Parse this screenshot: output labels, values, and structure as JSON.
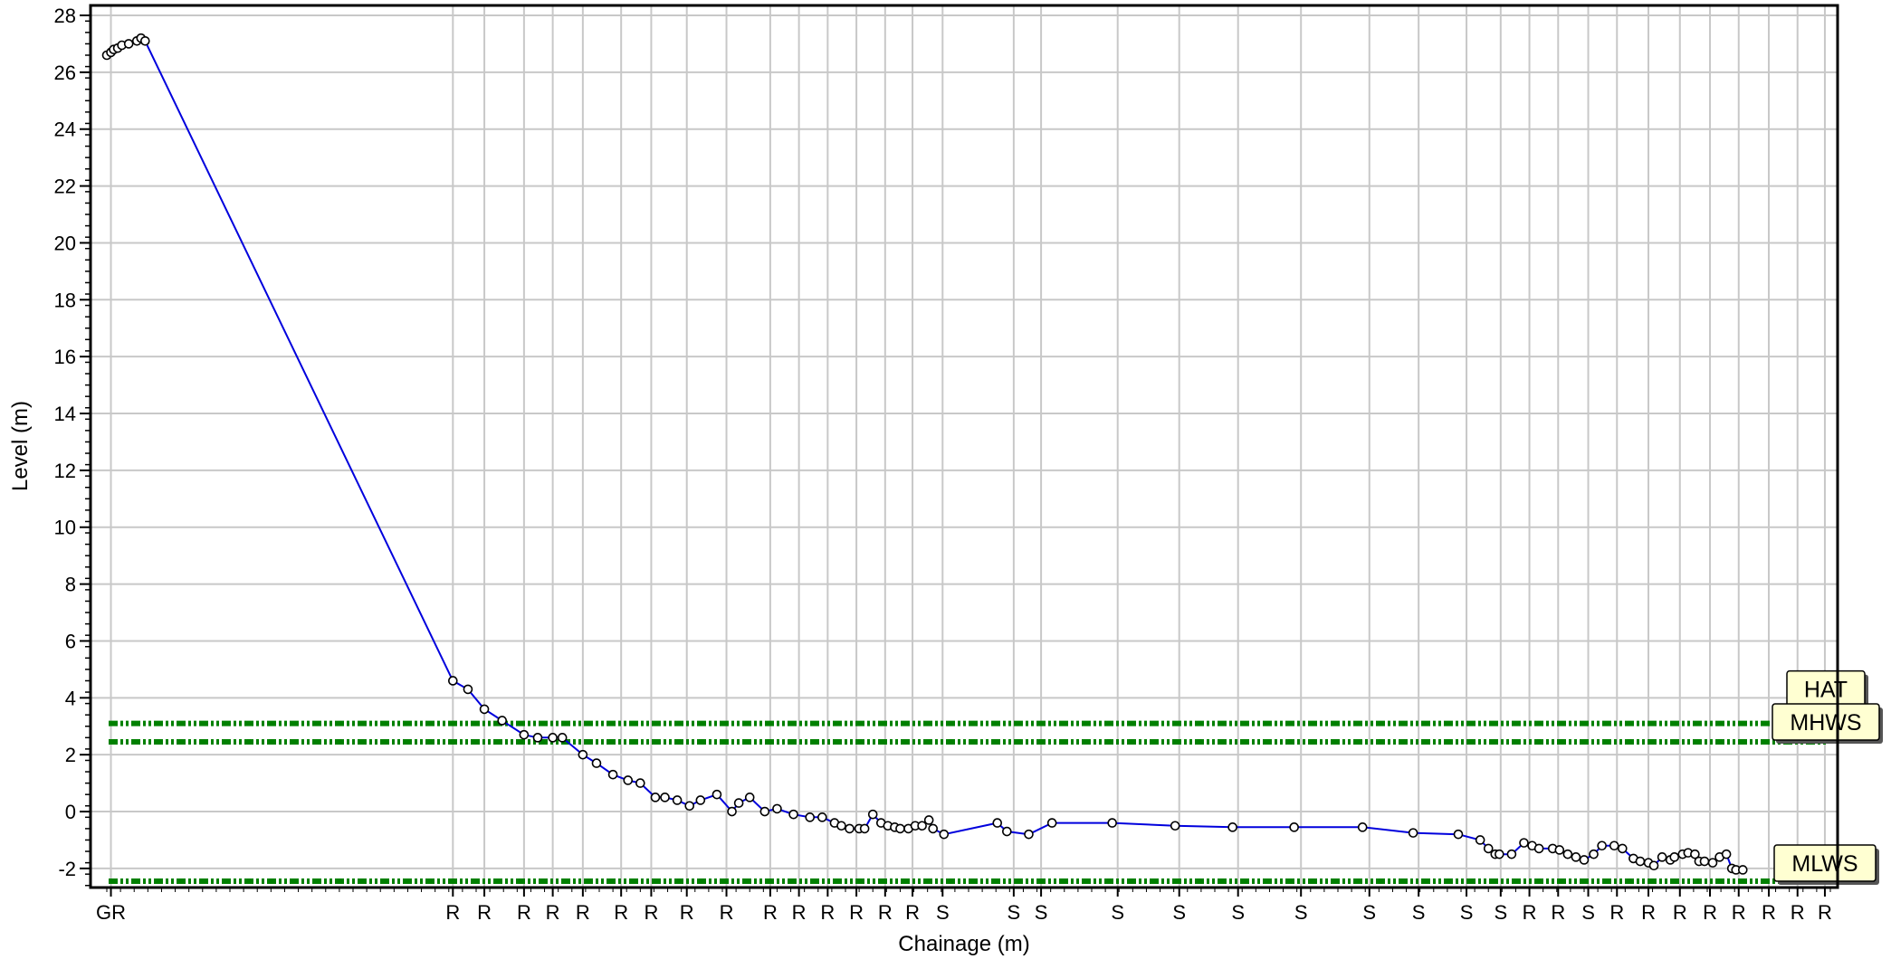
{
  "chart_data": {
    "type": "line",
    "xlabel": "Chainage (m)",
    "ylabel": "Level (m)",
    "ylim": [
      -3,
      28
    ],
    "yticks": [
      -2,
      0,
      2,
      4,
      6,
      8,
      10,
      12,
      14,
      16,
      18,
      20,
      22,
      24,
      26,
      28
    ],
    "xlim": [
      0,
      126
    ],
    "grid": true,
    "x_tick_labels": [
      {
        "x": 0.3,
        "text": "GR"
      },
      {
        "x": 25.3,
        "text": "R"
      },
      {
        "x": 27.6,
        "text": "R"
      },
      {
        "x": 30.5,
        "text": "R"
      },
      {
        "x": 32.6,
        "text": "R"
      },
      {
        "x": 34.8,
        "text": "R"
      },
      {
        "x": 37.6,
        "text": "R"
      },
      {
        "x": 39.8,
        "text": "R"
      },
      {
        "x": 42.4,
        "text": "R"
      },
      {
        "x": 45.3,
        "text": "R"
      },
      {
        "x": 48.5,
        "text": "R"
      },
      {
        "x": 50.6,
        "text": "R"
      },
      {
        "x": 52.7,
        "text": "R"
      },
      {
        "x": 54.8,
        "text": "R"
      },
      {
        "x": 56.9,
        "text": "R"
      },
      {
        "x": 58.9,
        "text": "R"
      },
      {
        "x": 61.1,
        "text": "S"
      },
      {
        "x": 66.3,
        "text": "S"
      },
      {
        "x": 68.3,
        "text": "S"
      },
      {
        "x": 73.9,
        "text": "S"
      },
      {
        "x": 78.4,
        "text": "S"
      },
      {
        "x": 82.7,
        "text": "S"
      },
      {
        "x": 87.3,
        "text": "S"
      },
      {
        "x": 92.3,
        "text": "S"
      },
      {
        "x": 95.9,
        "text": "S"
      },
      {
        "x": 99.4,
        "text": "S"
      },
      {
        "x": 101.9,
        "text": "S"
      },
      {
        "x": 104.0,
        "text": "R"
      },
      {
        "x": 106.1,
        "text": "R"
      },
      {
        "x": 108.3,
        "text": "S"
      },
      {
        "x": 110.4,
        "text": "R"
      },
      {
        "x": 112.7,
        "text": "R"
      },
      {
        "x": 115.0,
        "text": "R"
      },
      {
        "x": 117.2,
        "text": "R"
      },
      {
        "x": 119.3,
        "text": "R"
      },
      {
        "x": 121.5,
        "text": "R"
      },
      {
        "x": 123.6,
        "text": "R"
      },
      {
        "x": 125.6,
        "text": "R"
      }
    ],
    "series": [
      {
        "color": "#0000dd",
        "marker": "circle",
        "x": [
          0.0,
          0.3,
          0.5,
          0.8,
          1.1,
          1.6,
          2.2,
          2.5,
          2.8,
          25.3,
          26.4,
          27.6,
          28.9,
          30.5,
          31.5,
          32.6,
          33.3,
          34.8,
          35.8,
          37.0,
          38.1,
          39.0,
          40.1,
          40.8,
          41.7,
          42.6,
          43.4,
          44.6,
          45.7,
          46.2,
          47.0,
          48.1,
          49.0,
          50.2,
          51.4,
          52.3,
          53.2,
          53.7,
          54.3,
          55.0,
          55.4,
          56.0,
          56.6,
          57.1,
          57.6,
          58.0,
          58.6,
          59.1,
          59.6,
          60.1,
          60.4,
          61.2,
          65.1,
          65.8,
          67.4,
          69.1,
          73.5,
          78.1,
          82.3,
          86.8,
          91.8,
          95.5,
          98.8,
          100.4,
          101.0,
          101.5,
          101.8,
          102.7,
          103.6,
          104.2,
          104.7,
          105.7,
          106.2,
          106.8,
          107.4,
          108.0,
          108.7,
          109.3,
          110.2,
          110.8,
          111.6,
          112.1,
          112.7,
          113.1,
          113.7,
          114.3,
          114.6,
          115.2,
          115.6,
          116.1,
          116.4,
          116.8,
          117.4,
          117.9,
          118.4,
          118.8,
          119.1,
          119.6
        ],
        "y": [
          26.6,
          26.7,
          26.8,
          26.85,
          26.95,
          27.0,
          27.1,
          27.2,
          27.1,
          4.6,
          4.3,
          3.6,
          3.2,
          2.7,
          2.6,
          2.6,
          2.6,
          2.0,
          1.7,
          1.3,
          1.1,
          1.0,
          0.5,
          0.5,
          0.4,
          0.2,
          0.4,
          0.6,
          0.0,
          0.3,
          0.5,
          0.0,
          0.1,
          -0.1,
          -0.2,
          -0.2,
          -0.4,
          -0.5,
          -0.6,
          -0.6,
          -0.6,
          -0.1,
          -0.4,
          -0.5,
          -0.55,
          -0.6,
          -0.6,
          -0.5,
          -0.5,
          -0.3,
          -0.6,
          -0.8,
          -0.4,
          -0.7,
          -0.8,
          -0.4,
          -0.4,
          -0.5,
          -0.55,
          -0.55,
          -0.55,
          -0.75,
          -0.8,
          -1.0,
          -1.3,
          -1.5,
          -1.5,
          -1.5,
          -1.1,
          -1.2,
          -1.3,
          -1.3,
          -1.35,
          -1.5,
          -1.6,
          -1.7,
          -1.5,
          -1.2,
          -1.2,
          -1.3,
          -1.65,
          -1.75,
          -1.8,
          -1.9,
          -1.6,
          -1.7,
          -1.6,
          -1.5,
          -1.45,
          -1.5,
          -1.75,
          -1.75,
          -1.8,
          -1.6,
          -1.5,
          -2.0,
          -2.05,
          -2.05
        ]
      }
    ],
    "reference_lines": [
      {
        "label": "HAT",
        "y": 3.1,
        "color": "#008000"
      },
      {
        "label": "MHWS",
        "y": 2.45,
        "color": "#008000"
      },
      {
        "label": "MLWS",
        "y": -2.45,
        "color": "#008000"
      }
    ]
  }
}
